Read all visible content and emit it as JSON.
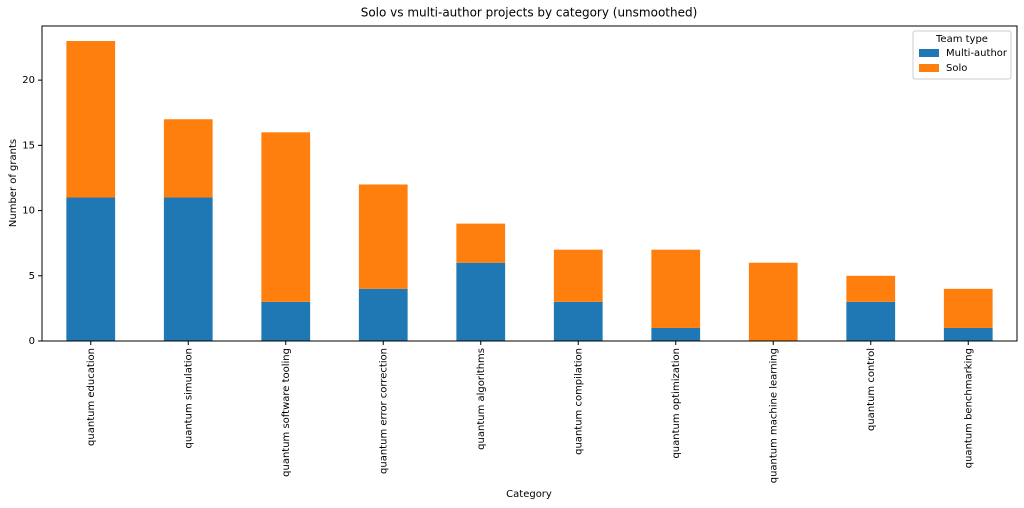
{
  "chart_data": {
    "type": "stacked_bar",
    "title": "Solo vs multi-author projects by category (unsmoothed)",
    "x_label": "Category",
    "y_label": "Number of grants",
    "categories": [
      "quantum education",
      "quantum simulation",
      "quantum software tooling",
      "quantum error correction",
      "quantum algorithms",
      "quantum compilation",
      "quantum optimization",
      "quantum machine learning",
      "quantum control",
      "quantum benchmarking"
    ],
    "series": [
      {
        "name": "Multi-author",
        "color": "#1f77b4",
        "values": [
          11,
          11,
          3,
          4,
          6,
          3,
          1,
          0,
          3,
          1
        ]
      },
      {
        "name": "Solo",
        "color": "#ff7f0e",
        "values": [
          12,
          6,
          13,
          8,
          3,
          4,
          6,
          6,
          2,
          3
        ]
      }
    ],
    "ylim": [
      0,
      24.15
    ],
    "yticks": [
      0,
      5,
      10,
      15,
      20
    ],
    "grid": false,
    "legend_title": "Team type",
    "legend_position": "upper right"
  }
}
